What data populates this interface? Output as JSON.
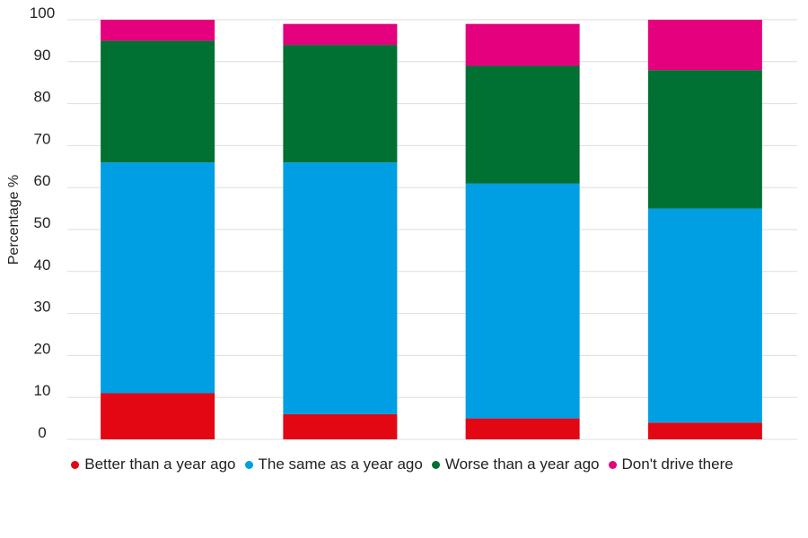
{
  "chart_data": {
    "type": "bar",
    "stacked": true,
    "categories": [
      "",
      "",
      "",
      ""
    ],
    "series": [
      {
        "name": "Better than a year ago",
        "color": "#e30613",
        "values": [
          11,
          6,
          5,
          4
        ]
      },
      {
        "name": "The same as a year ago",
        "color": "#009fe3",
        "values": [
          55,
          60,
          56,
          51
        ]
      },
      {
        "name": "Worse than a year ago",
        "color": "#007033",
        "values": [
          29,
          28,
          28,
          33
        ]
      },
      {
        "name": "Don't drive there",
        "color": "#e5007d",
        "values": [
          5,
          5,
          10,
          12
        ]
      }
    ],
    "ylabel": "Percentage %",
    "ylim": [
      0,
      100
    ],
    "yticks": [
      "0",
      "10",
      "20",
      "30",
      "40",
      "50",
      "60",
      "70",
      "80",
      "90",
      "100"
    ],
    "grid": true,
    "legend_position": "bottom"
  }
}
